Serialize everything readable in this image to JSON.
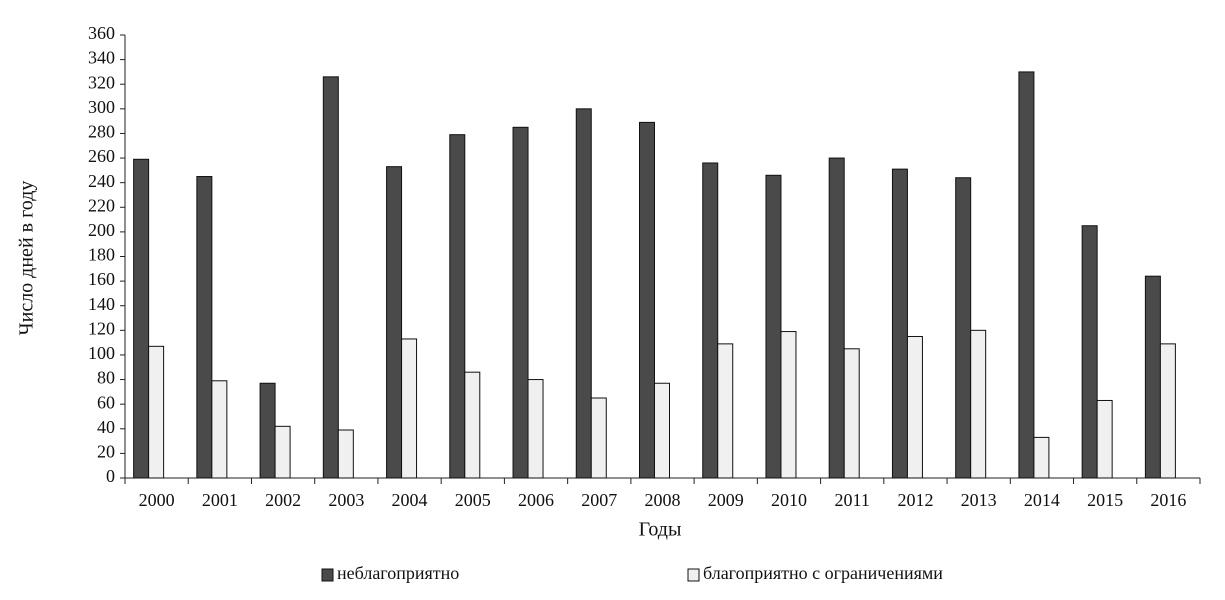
{
  "chart_data": {
    "type": "bar",
    "x_label": "Годы",
    "y_label": "Число дней в году",
    "categories": [
      "2000",
      "2001",
      "2002",
      "2003",
      "2004",
      "2005",
      "2006",
      "2007",
      "2008",
      "2009",
      "2010",
      "2011",
      "2012",
      "2013",
      "2014",
      "2015",
      "2016"
    ],
    "series": [
      {
        "name": "неблагоприятно",
        "color": "#4a4a4a",
        "values": [
          259,
          245,
          77,
          326,
          253,
          279,
          285,
          300,
          289,
          256,
          246,
          260,
          251,
          244,
          330,
          205,
          164
        ]
      },
      {
        "name": "благоприятно с ограничениями",
        "color": "#f0f0f0",
        "values": [
          107,
          79,
          42,
          39,
          113,
          86,
          80,
          65,
          77,
          109,
          119,
          105,
          115,
          120,
          33,
          63,
          109
        ]
      }
    ],
    "ylim": [
      0,
      360
    ],
    "yticks": [
      0,
      20,
      40,
      60,
      80,
      100,
      120,
      140,
      160,
      180,
      200,
      220,
      240,
      260,
      280,
      300,
      320,
      340,
      360
    ],
    "grid": false,
    "legend": "bottom"
  }
}
